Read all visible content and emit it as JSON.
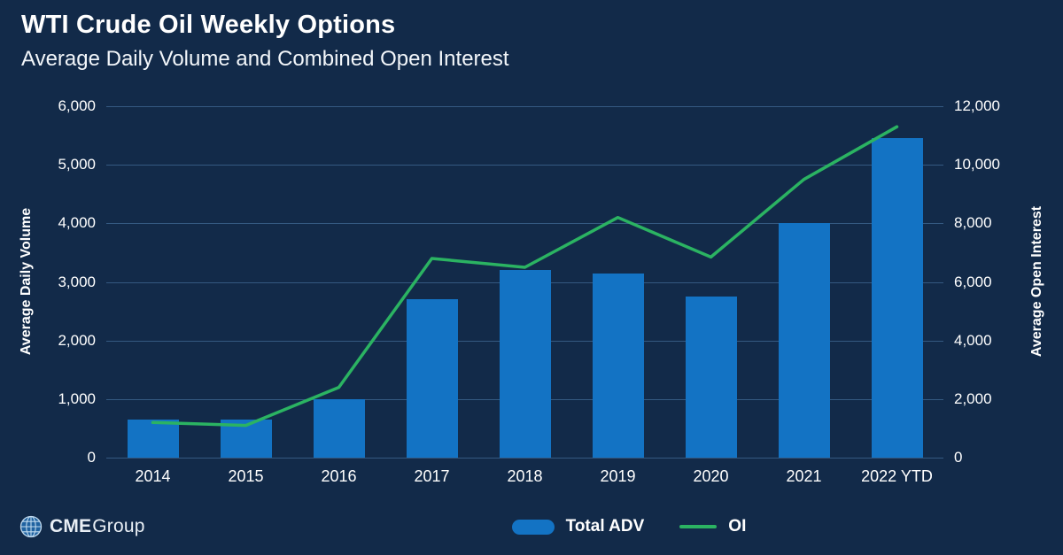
{
  "header": {
    "title": "WTI Crude Oil Weekly Options",
    "subtitle": "Average Daily Volume and Combined Open Interest"
  },
  "chart_data": {
    "type": "bar",
    "subtype": "bar-and-line-dual-axis",
    "title": "WTI Crude Oil Weekly Options",
    "subtitle": "Average Daily Volume and Combined Open Interest",
    "categories": [
      "2014",
      "2015",
      "2016",
      "2017",
      "2018",
      "2019",
      "2020",
      "2021",
      "2022 YTD"
    ],
    "series": [
      {
        "name": "Total ADV",
        "type": "bar",
        "axis": "left",
        "color": "#1373C4",
        "values": [
          650,
          650,
          1000,
          2700,
          3200,
          3150,
          2750,
          4000,
          5450
        ]
      },
      {
        "name": "OI",
        "type": "line",
        "axis": "right",
        "color": "#2BB362",
        "values": [
          1200,
          1100,
          2400,
          6800,
          6500,
          8200,
          6850,
          9500,
          11300
        ]
      }
    ],
    "left_axis": {
      "label": "Average Daily Volume",
      "min": 0,
      "max": 6000,
      "step": 1000
    },
    "right_axis": {
      "label": "Average Open Interest",
      "min": 0,
      "max": 12000,
      "step": 2000
    },
    "grid": true,
    "legend_position": "bottom-center"
  },
  "footer": {
    "brand_bold": "CME",
    "brand_regular": "Group"
  },
  "colors": {
    "background": "#122A49",
    "bar": "#1373C4",
    "line": "#2BB362",
    "grid": "#4F7FB0",
    "text": "#FFFFFF"
  }
}
